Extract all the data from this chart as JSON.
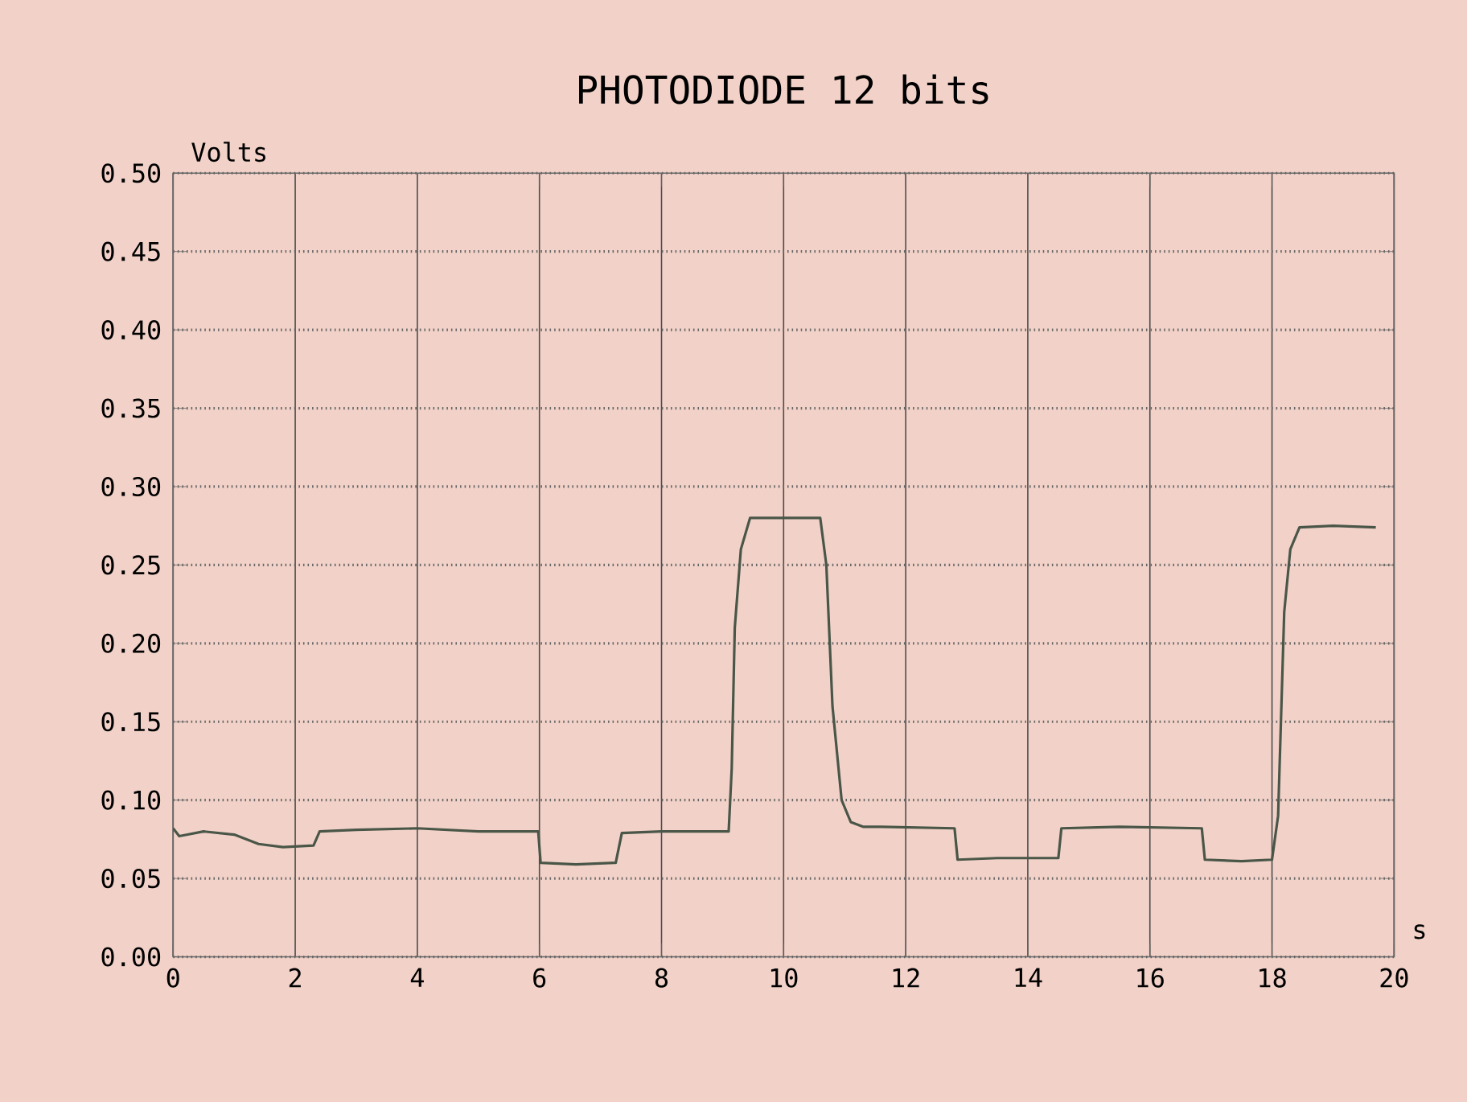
{
  "chart_data": {
    "type": "line",
    "title": "PHOTODIODE 12 bits",
    "ylabel": "Volts",
    "xlabel": "s",
    "xlim": [
      0,
      20
    ],
    "xticks": [
      0,
      2,
      4,
      6,
      8,
      10,
      12,
      14,
      16,
      18,
      20
    ],
    "ylim": [
      0,
      0.5
    ],
    "yticks": [
      {
        "value": 0,
        "label": "0.00"
      },
      {
        "value": 0.05,
        "label": "0.05"
      },
      {
        "value": 0.1,
        "label": "0.10"
      },
      {
        "value": 0.15,
        "label": "0.15"
      },
      {
        "value": 0.2,
        "label": "0.20"
      },
      {
        "value": 0.25,
        "label": "0.25"
      },
      {
        "value": 0.3,
        "label": "0.30"
      },
      {
        "value": 0.35,
        "label": "0.35"
      },
      {
        "value": 0.4,
        "label": "0.40"
      },
      {
        "value": 0.45,
        "label": "0.45"
      },
      {
        "value": 0.5,
        "label": "0.50"
      }
    ],
    "grid": true,
    "marker": "none",
    "line_style": "solid",
    "series": [
      {
        "color": "#4a5648",
        "x": [
          0,
          0.1,
          0.5,
          1.0,
          1.4,
          1.8,
          2.3,
          2.4,
          3.0,
          4.0,
          5.0,
          5.98,
          6.02,
          6.6,
          7.25,
          7.35,
          8.0,
          9.1,
          9.15,
          9.2,
          9.3,
          9.45,
          10.0,
          10.6,
          10.7,
          10.8,
          10.95,
          11.1,
          11.3,
          11.6,
          12.8,
          12.85,
          13.5,
          14.5,
          14.55,
          15.5,
          16.85,
          16.9,
          17.5,
          18.0,
          18.1,
          18.2,
          18.3,
          18.45,
          19.0,
          19.7
        ],
        "values": [
          0.082,
          0.077,
          0.08,
          0.078,
          0.072,
          0.07,
          0.071,
          0.08,
          0.081,
          0.082,
          0.08,
          0.08,
          0.06,
          0.059,
          0.06,
          0.079,
          0.08,
          0.08,
          0.12,
          0.21,
          0.26,
          0.28,
          0.28,
          0.28,
          0.25,
          0.16,
          0.1,
          0.086,
          0.083,
          0.083,
          0.082,
          0.062,
          0.063,
          0.063,
          0.082,
          0.083,
          0.082,
          0.062,
          0.061,
          0.062,
          0.09,
          0.22,
          0.26,
          0.274,
          0.275,
          0.274
        ]
      }
    ]
  }
}
